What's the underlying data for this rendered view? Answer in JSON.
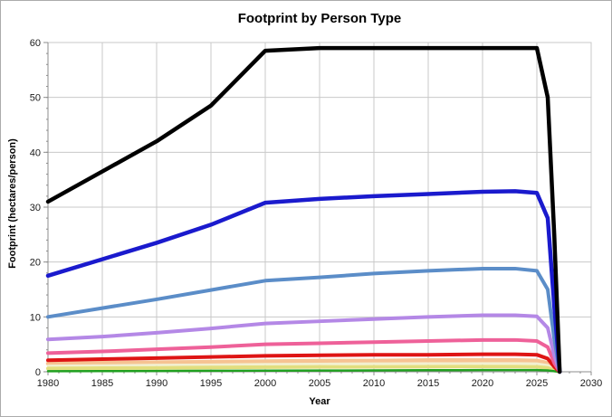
{
  "chart_data": {
    "type": "line",
    "title": "Footprint by Person Type",
    "xlabel": "Year",
    "ylabel": "Footprint (hectares/person)",
    "xlim": [
      1980,
      2030
    ],
    "ylim": [
      0,
      60
    ],
    "xticks": [
      1980,
      1985,
      1990,
      1995,
      2000,
      2005,
      2010,
      2015,
      2020,
      2025,
      2030
    ],
    "yticks": [
      0,
      10,
      20,
      30,
      40,
      50,
      60
    ],
    "x_minor_step": 1,
    "y_minor_step": 2,
    "grid": true,
    "legend_position": "none",
    "gridline_color": "#c8c8c8",
    "axis_color": "#8c8c8c",
    "tick_label_color": "#1a1a1a",
    "x": [
      1980,
      1985,
      1990,
      1995,
      2000,
      2005,
      2010,
      2015,
      2020,
      2023,
      2025,
      2026,
      2026.6,
      2027.1
    ],
    "series": [
      {
        "name": "orange",
        "color": "#f6c392",
        "width": 4.5,
        "values": [
          1.5,
          1.6,
          1.7,
          1.8,
          1.9,
          2.0,
          2.0,
          2.1,
          2.1,
          2.1,
          2.0,
          1.6,
          0.6,
          0
        ]
      },
      {
        "name": "cream",
        "color": "#f2efd0",
        "width": 2.5,
        "values": [
          1.1,
          1.15,
          1.25,
          1.3,
          1.4,
          1.45,
          1.5,
          1.5,
          1.55,
          1.55,
          1.5,
          1.2,
          0.4,
          0
        ]
      },
      {
        "name": "yellow",
        "color": "#e2de7e",
        "width": 4,
        "values": [
          0.6,
          0.65,
          0.7,
          0.78,
          0.85,
          0.88,
          0.9,
          0.93,
          0.95,
          0.95,
          0.9,
          0.7,
          0.25,
          0
        ]
      },
      {
        "name": "green",
        "color": "#20a020",
        "width": 2.5,
        "values": [
          0.1,
          0.12,
          0.15,
          0.18,
          0.2,
          0.22,
          0.25,
          0.28,
          0.3,
          0.3,
          0.3,
          0.25,
          0.1,
          0
        ]
      },
      {
        "name": "red",
        "color": "#de1414",
        "width": 4,
        "values": [
          2.1,
          2.3,
          2.5,
          2.7,
          2.9,
          3.0,
          3.1,
          3.1,
          3.2,
          3.2,
          3.1,
          2.4,
          0.9,
          0
        ]
      },
      {
        "name": "pink",
        "color": "#ee6199",
        "width": 4,
        "values": [
          3.4,
          3.7,
          4.1,
          4.5,
          5.0,
          5.2,
          5.4,
          5.6,
          5.8,
          5.8,
          5.6,
          4.5,
          1.6,
          0
        ]
      },
      {
        "name": "violet",
        "color": "#b488e6",
        "width": 4,
        "values": [
          5.9,
          6.4,
          7.1,
          7.9,
          8.8,
          9.2,
          9.6,
          10.0,
          10.3,
          10.3,
          10.1,
          8.0,
          3.0,
          0
        ]
      },
      {
        "name": "steel-blue",
        "color": "#5b8dc8",
        "width": 4,
        "values": [
          10.0,
          11.6,
          13.2,
          14.9,
          16.6,
          17.2,
          17.9,
          18.4,
          18.8,
          18.8,
          18.4,
          15.0,
          6.0,
          0
        ]
      },
      {
        "name": "blue",
        "color": "#1a1acd",
        "width": 4.5,
        "values": [
          17.5,
          20.5,
          23.5,
          26.8,
          30.8,
          31.5,
          32.0,
          32.4,
          32.8,
          32.9,
          32.6,
          28.0,
          12.0,
          0
        ]
      },
      {
        "name": "black",
        "color": "#000000",
        "width": 4.5,
        "values": [
          31.0,
          36.5,
          42.0,
          48.5,
          58.5,
          59.0,
          59.0,
          59.0,
          59.0,
          59.0,
          59.0,
          50.0,
          25.0,
          0
        ]
      }
    ]
  }
}
